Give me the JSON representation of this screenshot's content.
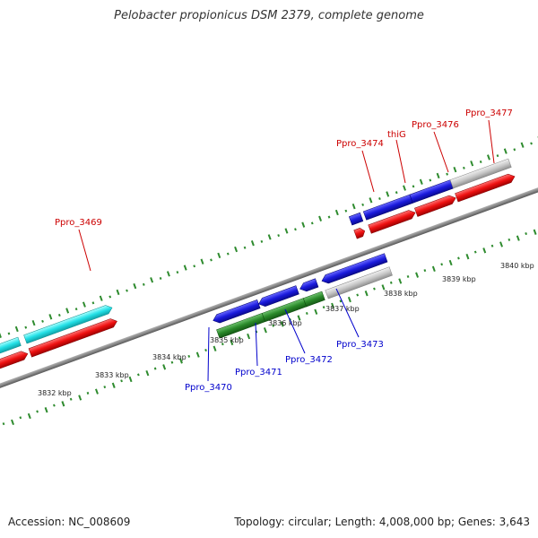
{
  "title": "Pelobacter propionicus DSM 2379, complete genome",
  "footer": {
    "accession": "Accession: NC_008609",
    "topology": "Topology: circular; Length: 4,008,000 bp; Genes: 3,643"
  },
  "colors": {
    "backbone": "#888888",
    "tick_dots": "#2e8b2e",
    "gene_blue": "#1a1adc",
    "gene_red": "#ee1111",
    "gene_cyan": "#22e0e6",
    "gene_green": "#2a8a2a",
    "gene_gray": "#c8c8c8",
    "label_red": "#cc0000",
    "label_blue": "#0000cc"
  },
  "kbp_ticks": [
    "3832 kbp",
    "3833 kbp",
    "3834 kbp",
    "3835 kbp",
    "3836 kbp",
    "3837 kbp",
    "3838 kbp",
    "3839 kbp",
    "3840 kbp"
  ],
  "gene_labels_top": [
    "Ppro_3469",
    "Ppro_3474",
    "thiG",
    "Ppro_3476",
    "Ppro_3477"
  ],
  "gene_labels_bottom": [
    "Ppro_3470",
    "Ppro_3471",
    "Ppro_3472",
    "Ppro_3473"
  ]
}
